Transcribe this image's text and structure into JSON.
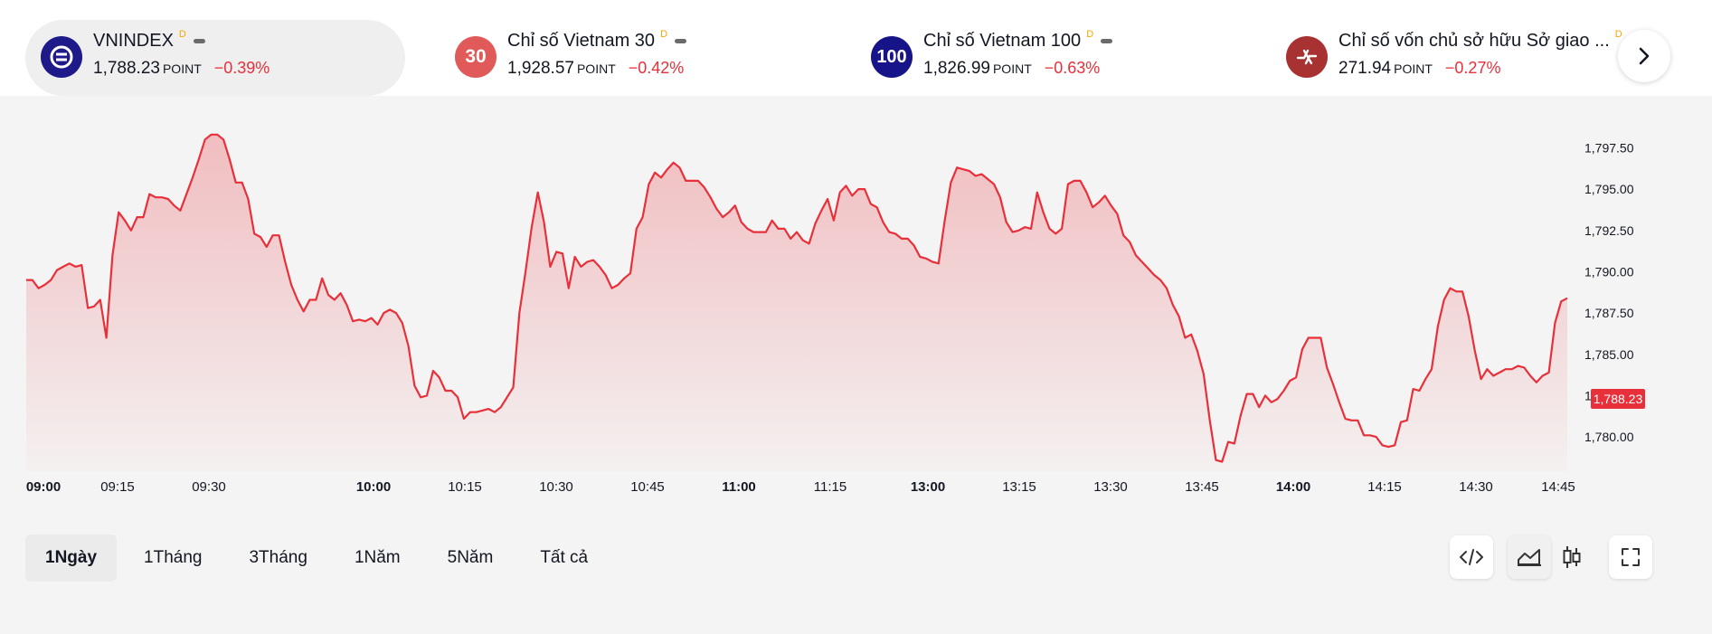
{
  "tickers": [
    {
      "name": "VNINDEX",
      "flag": "D",
      "price": "1,788.23",
      "unit": "POINT",
      "change": "−0.39%",
      "icon_text": "",
      "icon_color": "#1e1a8a",
      "active": true
    },
    {
      "name": "Chỉ số Vietnam 30",
      "flag": "D",
      "price": "1,928.57",
      "unit": "POINT",
      "change": "−0.42%",
      "icon_text": "30",
      "icon_color": "#e05a5a",
      "active": false
    },
    {
      "name": "Chỉ số Vietnam 100",
      "flag": "D",
      "price": "1,826.99",
      "unit": "POINT",
      "change": "−0.63%",
      "icon_text": "100",
      "icon_color": "#17148a",
      "active": false
    },
    {
      "name": "Chỉ số vốn chủ sở hữu Sở giao ...",
      "flag": "D",
      "price": "271.94",
      "unit": "POINT",
      "change": "−0.27%",
      "icon_text": "",
      "icon_color": "#a83232",
      "active": false
    }
  ],
  "chart": {
    "current_price": "1,788.23",
    "line_color": "#e8303a"
  },
  "chart_data": {
    "type": "area",
    "series": [
      {
        "values": [
          1789.5,
          1789.5,
          1789,
          1789.2,
          1789.5,
          1790.1,
          1790.3,
          1790.5,
          1790.3,
          1790.4,
          1787.8,
          1787.9,
          1788.3,
          1786.0,
          1791.0,
          1793.6,
          1793.1,
          1792.5,
          1793.3,
          1793.3,
          1794.7,
          1794.5,
          1794.5,
          1794.4,
          1794.0,
          1793.7,
          1794.7,
          1795.7,
          1796.8,
          1798.0,
          1798.3,
          1798.3,
          1798.0,
          1796.8,
          1795.4,
          1795.4,
          1794.4,
          1792.3,
          1792.1,
          1791.5,
          1792.2,
          1792.2,
          1790.6,
          1789.2,
          1788.3,
          1787.6,
          1788.3,
          1788.3,
          1789.6,
          1788.6,
          1788.3,
          1788.7,
          1788.0,
          1787.0,
          1787.1,
          1787.0,
          1787.2,
          1786.8,
          1787.5,
          1787.7,
          1787.5,
          1786.9,
          1785.5,
          1783.1,
          1782.4,
          1782.5,
          1784.0,
          1783.6,
          1782.8,
          1782.8,
          1782.4,
          1781.1,
          1781.5,
          1781.5,
          1781.6,
          1781.7,
          1781.5,
          1781.8,
          1782.4,
          1783.0,
          1787.5,
          1790.0,
          1792.7,
          1794.8,
          1793.0,
          1790.3,
          1791.2,
          1791.1,
          1789.0,
          1790.9,
          1790.3,
          1790.6,
          1790.7,
          1790.3,
          1789.8,
          1789.0,
          1789.2,
          1789.6,
          1789.9,
          1792.6,
          1793.3,
          1795.3,
          1796.0,
          1795.7,
          1796.2,
          1796.6,
          1796.3,
          1795.5,
          1795.5,
          1795.5,
          1795.1,
          1794.5,
          1793.8,
          1793.3,
          1793.6,
          1794.0,
          1793.0,
          1792.6,
          1792.4,
          1792.4,
          1792.4,
          1793.1,
          1792.6,
          1792.6,
          1792.0,
          1792.4,
          1791.9,
          1791.7,
          1792.9,
          1793.7,
          1794.4,
          1793.1,
          1794.8,
          1795.2,
          1794.6,
          1795.0,
          1795.0,
          1794.1,
          1793.9,
          1793.0,
          1792.4,
          1792.3,
          1792.0,
          1792.0,
          1791.6,
          1790.9,
          1790.8,
          1790.6,
          1790.5,
          1793.1,
          1795.4,
          1796.3,
          1796.2,
          1796.1,
          1795.8,
          1795.9,
          1795.6,
          1795.3,
          1794.5,
          1793.0,
          1792.4,
          1792.5,
          1792.7,
          1792.6,
          1794.8,
          1793.6,
          1792.6,
          1792.3,
          1792.6,
          1795.3,
          1795.5,
          1795.5,
          1794.8,
          1793.9,
          1794.2,
          1794.6,
          1794.0,
          1793.5,
          1792.2,
          1791.8,
          1791.0,
          1790.6,
          1790.2,
          1789.8,
          1789.5,
          1789.0,
          1788.0,
          1787.3,
          1786.0,
          1786.2,
          1785.2,
          1783.8,
          1781.0,
          1778.6,
          1778.5,
          1779.7,
          1779.6,
          1781.3,
          1782.6,
          1782.6,
          1781.8,
          1782.5,
          1782.1,
          1782.3,
          1782.8,
          1783.4,
          1783.6,
          1785.3,
          1786.0,
          1786.0,
          1786.0,
          1784.2,
          1783.2,
          1782.1,
          1781.1,
          1781.0,
          1781.0,
          1780.1,
          1780.1,
          1780.0,
          1779.5,
          1779.4,
          1779.5,
          1780.9,
          1781.0,
          1782.9,
          1782.8,
          1783.5,
          1784.1,
          1786.7,
          1788.3,
          1789.0,
          1788.8,
          1788.8,
          1787.3,
          1785.2,
          1783.5,
          1784.1,
          1783.7,
          1783.9,
          1784.1,
          1784.1,
          1784.3,
          1784.2,
          1783.7,
          1783.3,
          1783.7,
          1783.9,
          1786.9,
          1788.2,
          1788.4
        ]
      }
    ],
    "x_ticks": [
      {
        "label": "09:00",
        "bold": true
      },
      {
        "label": "09:15",
        "bold": false
      },
      {
        "label": "09:30",
        "bold": false
      },
      {
        "label": "10:00",
        "bold": true
      },
      {
        "label": "10:15",
        "bold": false
      },
      {
        "label": "10:30",
        "bold": false
      },
      {
        "label": "10:45",
        "bold": false
      },
      {
        "label": "11:00",
        "bold": true
      },
      {
        "label": "11:15",
        "bold": false
      },
      {
        "label": "13:00",
        "bold": true
      },
      {
        "label": "13:15",
        "bold": false
      },
      {
        "label": "13:30",
        "bold": false
      },
      {
        "label": "13:45",
        "bold": false
      },
      {
        "label": "14:00",
        "bold": true
      },
      {
        "label": "14:15",
        "bold": false
      },
      {
        "label": "14:30",
        "bold": false
      },
      {
        "label": "14:45",
        "bold": false
      }
    ],
    "y_ticks": [
      1797.5,
      1795.0,
      1792.5,
      1790.0,
      1787.5,
      1785.0,
      1782.5,
      1780.0
    ],
    "y_tick_labels": [
      "1,797.50",
      "1,795.00",
      "1,792.50",
      "1,790.00",
      "1,787.50",
      "1,785.00",
      "1,782.50",
      "1,780.00"
    ],
    "ylim": [
      1778.2,
      1799.0
    ],
    "grid": false,
    "legend": "none"
  },
  "ranges": [
    "1Ngày",
    "1Tháng",
    "3Tháng",
    "1Năm",
    "5Năm",
    "Tất cả"
  ],
  "active_range": 0
}
